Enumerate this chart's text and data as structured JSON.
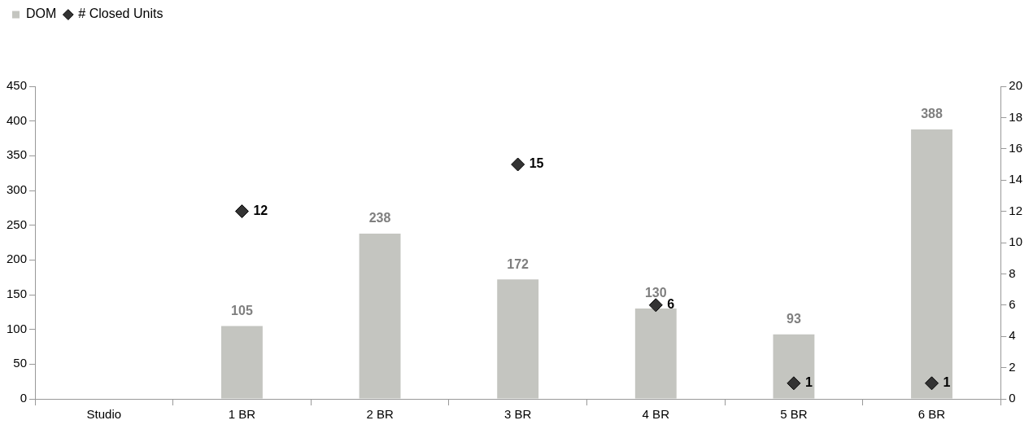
{
  "chart_data": {
    "type": "bar",
    "categories": [
      "Studio",
      "1 BR",
      "2 BR",
      "3 BR",
      "4 BR",
      "5 BR",
      "6 BR"
    ],
    "series": [
      {
        "name": "DOM",
        "color": "#c4c5c0",
        "values": [
          null,
          105,
          238,
          172,
          130,
          93,
          388
        ]
      },
      {
        "name": "# Closed Units",
        "type": "scatter",
        "axis": "y2",
        "color": "#333333",
        "values": [
          null,
          12,
          null,
          15,
          6,
          1,
          1
        ]
      }
    ],
    "ylim": [
      0,
      450
    ],
    "yticks": [
      0,
      50,
      100,
      150,
      200,
      250,
      300,
      350,
      400,
      450
    ],
    "y2lim": [
      0,
      20
    ],
    "y2ticks": [
      0,
      2,
      4,
      6,
      8,
      10,
      12,
      14,
      16,
      18,
      20
    ],
    "grid": false,
    "legend": "top left",
    "marker": "diamond",
    "data_labels": true
  }
}
